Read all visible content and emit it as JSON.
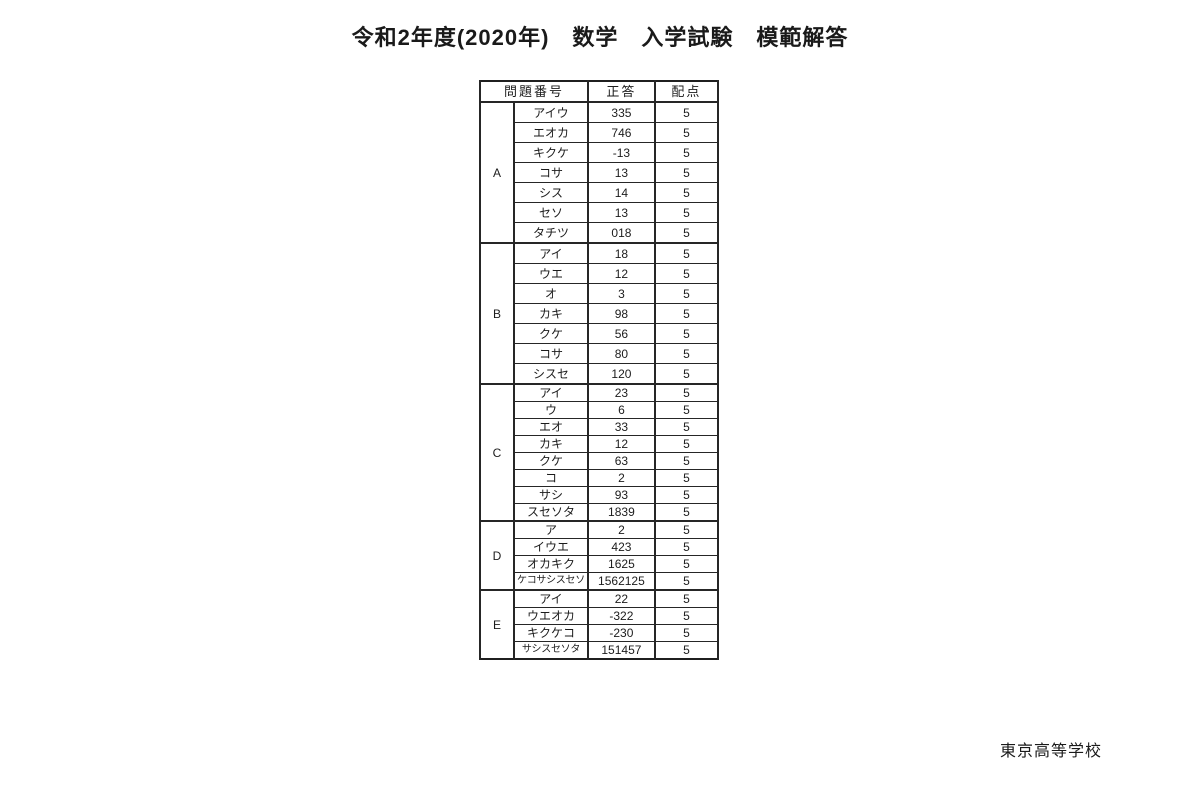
{
  "page": {
    "title": "令和2年度(2020年)　数学　入学試験　模範解答",
    "footer": "東京高等学校"
  },
  "table": {
    "headers": {
      "question_number": "問題番号",
      "correct_answer": "正答",
      "points": "配点"
    },
    "sections": [
      {
        "label": "A",
        "rows": [
          {
            "kana": "アイウ",
            "answer": "335",
            "points": "5"
          },
          {
            "kana": "エオカ",
            "answer": "746",
            "points": "5"
          },
          {
            "kana": "キクケ",
            "answer": "-13",
            "points": "5"
          },
          {
            "kana": "コサ",
            "answer": "13",
            "points": "5"
          },
          {
            "kana": "シス",
            "answer": "14",
            "points": "5"
          },
          {
            "kana": "セソ",
            "answer": "13",
            "points": "5"
          },
          {
            "kana": "タチツ",
            "answer": "018",
            "points": "5"
          }
        ]
      },
      {
        "label": "B",
        "rows": [
          {
            "kana": "アイ",
            "answer": "18",
            "points": "5"
          },
          {
            "kana": "ウエ",
            "answer": "12",
            "points": "5"
          },
          {
            "kana": "オ",
            "answer": "3",
            "points": "5"
          },
          {
            "kana": "カキ",
            "answer": "98",
            "points": "5"
          },
          {
            "kana": "クケ",
            "answer": "56",
            "points": "5"
          },
          {
            "kana": "コサ",
            "answer": "80",
            "points": "5"
          },
          {
            "kana": "シスセ",
            "answer": "120",
            "points": "5"
          }
        ]
      },
      {
        "label": "C",
        "rows": [
          {
            "kana": "アイ",
            "answer": "23",
            "points": "5"
          },
          {
            "kana": "ウ",
            "answer": "6",
            "points": "5"
          },
          {
            "kana": "エオ",
            "answer": "33",
            "points": "5"
          },
          {
            "kana": "カキ",
            "answer": "12",
            "points": "5"
          },
          {
            "kana": "クケ",
            "answer": "63",
            "points": "5"
          },
          {
            "kana": "コ",
            "answer": "2",
            "points": "5"
          },
          {
            "kana": "サシ",
            "answer": "93",
            "points": "5"
          },
          {
            "kana": "スセソタ",
            "answer": "1839",
            "points": "5"
          }
        ]
      },
      {
        "label": "D",
        "rows": [
          {
            "kana": "ア",
            "answer": "2",
            "points": "5"
          },
          {
            "kana": "イウエ",
            "answer": "423",
            "points": "5"
          },
          {
            "kana": "オカキク",
            "answer": "1625",
            "points": "5"
          },
          {
            "kana": "ケコサシスセソ",
            "answer": "1562125",
            "points": "5"
          }
        ]
      },
      {
        "label": "E",
        "rows": [
          {
            "kana": "アイ",
            "answer": "22",
            "points": "5"
          },
          {
            "kana": "ウエオカ",
            "answer": "-322",
            "points": "5"
          },
          {
            "kana": "キクケコ",
            "answer": "-230",
            "points": "5"
          },
          {
            "kana": "サシスセソタ",
            "answer": "151457",
            "points": "5"
          }
        ]
      }
    ]
  }
}
